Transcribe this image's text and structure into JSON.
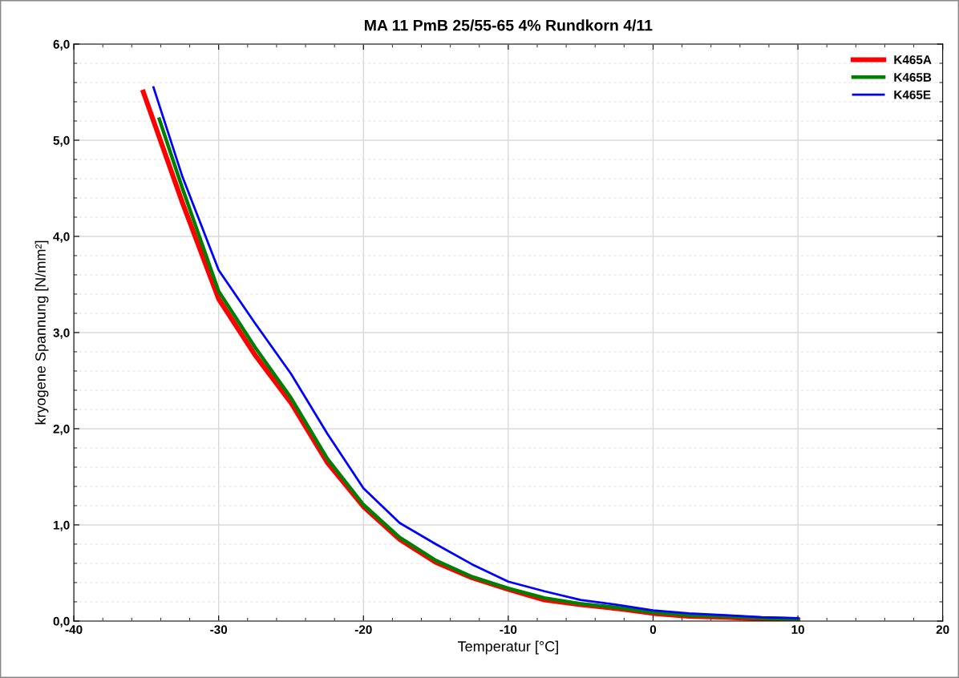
{
  "chart_data": {
    "type": "line",
    "title": "MA 11 PmB 25/55-65 4% Rundkorn 4/11",
    "xlabel": "Temperatur [°C]",
    "ylabel": "kryogene Spannung [N/mm²]",
    "xlim": [
      -40,
      20
    ],
    "xticks": [
      -40,
      -30,
      -20,
      -10,
      0,
      10,
      20
    ],
    "ylim": [
      0,
      6
    ],
    "yticks": [
      {
        "value": 0,
        "label": "0,0"
      },
      {
        "value": 1,
        "label": "1,0"
      },
      {
        "value": 2,
        "label": "2,0"
      },
      {
        "value": 3,
        "label": "3,0"
      },
      {
        "value": 4,
        "label": "4,0"
      },
      {
        "value": 5,
        "label": "5,0"
      },
      {
        "value": 6,
        "label": "6,0"
      }
    ],
    "grid": true,
    "legend": "top right",
    "marker": "none",
    "line_style": "solid",
    "series": [
      {
        "name": "K465A",
        "color": "#ff0000",
        "x": [
          -35.2,
          -32.5,
          -30,
          -27.5,
          -25,
          -22.5,
          -20,
          -17.5,
          -15,
          -12.5,
          -10,
          -7.5,
          -5,
          -2.5,
          0,
          2.5,
          5,
          7.5,
          10
        ],
        "values": [
          5.5,
          4.35,
          3.35,
          2.77,
          2.27,
          1.65,
          1.19,
          0.85,
          0.61,
          0.45,
          0.33,
          0.22,
          0.17,
          0.13,
          0.08,
          0.05,
          0.04,
          0.02,
          0.01
        ]
      },
      {
        "name": "K465B",
        "color": "#008000",
        "x": [
          -34.1,
          -32.5,
          -30,
          -27.5,
          -25,
          -22.5,
          -20,
          -17.5,
          -15,
          -12.5,
          -10,
          -7.5,
          -5,
          -2.5,
          0,
          2.5,
          5,
          7.5,
          10
        ],
        "values": [
          5.22,
          4.5,
          3.43,
          2.85,
          2.32,
          1.69,
          1.21,
          0.87,
          0.63,
          0.46,
          0.34,
          0.24,
          0.18,
          0.14,
          0.09,
          0.06,
          0.05,
          0.03,
          0.02
        ]
      },
      {
        "name": "K465E",
        "color": "#0000ff",
        "x": [
          -34.5,
          -32.5,
          -30,
          -27.5,
          -25,
          -22.5,
          -20,
          -17.5,
          -15,
          -12.5,
          -10,
          -7.5,
          -5,
          -2.5,
          0,
          2.5,
          5,
          7.5,
          10
        ],
        "values": [
          5.55,
          4.62,
          3.65,
          3.1,
          2.57,
          1.95,
          1.38,
          1.02,
          0.8,
          0.59,
          0.41,
          0.31,
          0.22,
          0.17,
          0.11,
          0.08,
          0.06,
          0.04,
          0.03
        ]
      }
    ]
  }
}
